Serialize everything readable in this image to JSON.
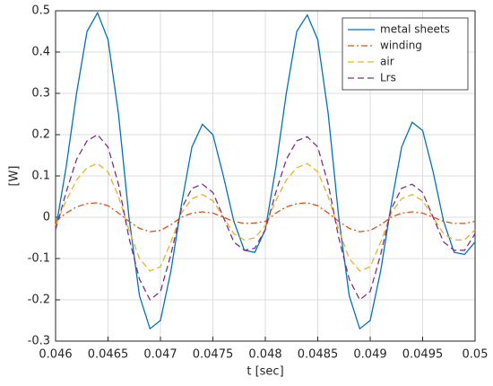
{
  "chart_data": {
    "type": "line",
    "xlabel": "t [sec]",
    "ylabel": "[W]",
    "x": [
      0.046,
      0.0461,
      0.0462,
      0.0463,
      0.0464,
      0.0465,
      0.0466,
      0.0467,
      0.0468,
      0.0469,
      0.047,
      0.0471,
      0.0472,
      0.0473,
      0.0474,
      0.0475,
      0.0476,
      0.0477,
      0.0478,
      0.0479,
      0.048,
      0.0481,
      0.0482,
      0.0483,
      0.0484,
      0.0485,
      0.0486,
      0.0487,
      0.0488,
      0.0489,
      0.049,
      0.0491,
      0.0492,
      0.0493,
      0.0494,
      0.0495,
      0.0496,
      0.0497,
      0.0498,
      0.0499,
      0.05
    ],
    "series": [
      {
        "name": "metal sheets",
        "color": "#0072bd",
        "linestyle": "solid",
        "values": [
          -0.03,
          0.12,
          0.3,
          0.45,
          0.495,
          0.43,
          0.25,
          0.0,
          -0.19,
          -0.27,
          -0.25,
          -0.13,
          0.03,
          0.17,
          0.225,
          0.2,
          0.1,
          -0.01,
          -0.08,
          -0.085,
          -0.03,
          0.12,
          0.3,
          0.45,
          0.49,
          0.43,
          0.25,
          0.0,
          -0.19,
          -0.27,
          -0.25,
          -0.13,
          0.03,
          0.17,
          0.23,
          0.21,
          0.11,
          -0.01,
          -0.085,
          -0.09,
          -0.06
        ]
      },
      {
        "name": "winding",
        "color": "#d95319",
        "linestyle": "dashdot",
        "values": [
          -0.01,
          0.01,
          0.025,
          0.033,
          0.035,
          0.028,
          0.01,
          -0.01,
          -0.027,
          -0.035,
          -0.032,
          -0.018,
          0.0,
          0.01,
          0.013,
          0.01,
          0.0,
          -0.01,
          -0.015,
          -0.014,
          -0.01,
          0.01,
          0.025,
          0.033,
          0.035,
          0.028,
          0.01,
          -0.01,
          -0.027,
          -0.035,
          -0.032,
          -0.018,
          0.0,
          0.01,
          0.013,
          0.01,
          0.0,
          -0.01,
          -0.015,
          -0.015,
          -0.01
        ]
      },
      {
        "name": "air",
        "color": "#edb120",
        "linestyle": "dashed",
        "values": [
          -0.02,
          0.04,
          0.09,
          0.12,
          0.13,
          0.11,
          0.05,
          -0.03,
          -0.1,
          -0.13,
          -0.12,
          -0.06,
          0.01,
          0.045,
          0.055,
          0.04,
          0.0,
          -0.04,
          -0.055,
          -0.05,
          -0.02,
          0.04,
          0.09,
          0.12,
          0.13,
          0.11,
          0.05,
          -0.03,
          -0.1,
          -0.13,
          -0.12,
          -0.06,
          0.01,
          0.045,
          0.055,
          0.04,
          0.0,
          -0.04,
          -0.055,
          -0.055,
          -0.03
        ]
      },
      {
        "name": "Lrs",
        "color": "#7e2f8e",
        "linestyle": "dashed",
        "values": [
          -0.03,
          0.06,
          0.14,
          0.185,
          0.2,
          0.17,
          0.08,
          -0.05,
          -0.15,
          -0.2,
          -0.18,
          -0.09,
          0.02,
          0.07,
          0.08,
          0.06,
          0.0,
          -0.06,
          -0.08,
          -0.075,
          -0.03,
          0.06,
          0.14,
          0.185,
          0.195,
          0.17,
          0.08,
          -0.05,
          -0.15,
          -0.2,
          -0.18,
          -0.09,
          0.02,
          0.07,
          0.08,
          0.06,
          0.0,
          -0.06,
          -0.08,
          -0.08,
          -0.04
        ]
      }
    ],
    "xlim": [
      0.046,
      0.05
    ],
    "xticks": [
      0.046,
      0.0465,
      0.047,
      0.0475,
      0.048,
      0.0485,
      0.049,
      0.0495,
      0.05
    ],
    "ylim": [
      -0.3,
      0.5
    ],
    "yticks": [
      -0.3,
      -0.2,
      -0.1,
      0,
      0.1,
      0.2,
      0.3,
      0.4,
      0.5
    ],
    "grid": true,
    "legend": "top-right"
  }
}
